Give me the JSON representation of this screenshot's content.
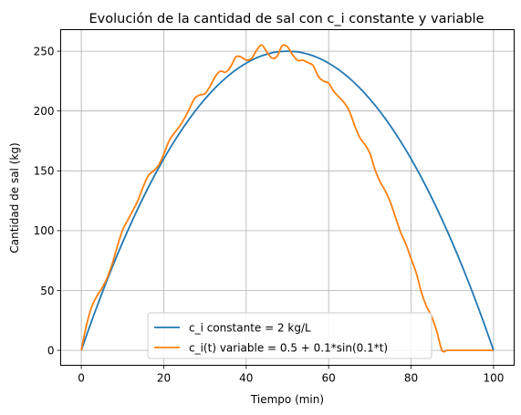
{
  "chart_data": {
    "type": "line",
    "title": "Evolución de la cantidad de sal con c_i constante y variable",
    "xlabel": "Tiempo (min)",
    "ylabel": "Cantidad de sal (kg)",
    "xlim": [
      -5,
      105
    ],
    "ylim": [
      -12.5,
      268
    ],
    "xticks": [
      0,
      20,
      40,
      60,
      80,
      100
    ],
    "yticks": [
      0,
      50,
      100,
      150,
      200,
      250
    ],
    "grid": true,
    "legend_position": "bottom-center",
    "series": [
      {
        "name": "c_i constante = 2 kg/L",
        "color": "#1f77b4",
        "x": [
          0,
          2.5,
          5,
          7.5,
          10,
          12.5,
          15,
          17.5,
          20,
          22.5,
          25,
          27.5,
          30,
          32.5,
          35,
          37.5,
          40,
          42.5,
          45,
          47.5,
          50,
          52.5,
          55,
          57.5,
          60,
          62.5,
          65,
          67.5,
          70,
          72.5,
          75,
          77.5,
          80,
          82.5,
          85,
          87.5,
          90,
          92.5,
          95,
          97.5,
          100
        ],
        "y": [
          0,
          24.4,
          47.5,
          69.4,
          90,
          109.4,
          127.5,
          144.4,
          160,
          174.4,
          187.5,
          199.4,
          210,
          219.4,
          227.5,
          234.4,
          240,
          244.4,
          247.5,
          249.4,
          250,
          249.4,
          247.5,
          244.4,
          240,
          234.4,
          227.5,
          219.4,
          210,
          199.4,
          187.5,
          174.4,
          160,
          144.4,
          127.5,
          109.4,
          90,
          69.4,
          47.5,
          24.4,
          0
        ]
      },
      {
        "name": "c_i(t) variable = 0.5 + 0.1*sin(0.1*t)",
        "color": "#ff7f0e",
        "x": [
          0,
          1.25,
          2.5,
          3.75,
          5,
          6.25,
          7.5,
          8.75,
          10,
          11.25,
          12.5,
          13.75,
          15,
          16.25,
          17.5,
          18.75,
          20,
          21.25,
          22.5,
          23.75,
          25,
          26.25,
          27.5,
          28.75,
          30,
          31.25,
          32.5,
          33.75,
          35,
          36.25,
          37.5,
          38.75,
          40,
          41.25,
          42.5,
          43.75,
          45,
          46.25,
          47.5,
          48.75,
          50,
          51.25,
          52.5,
          53.75,
          55,
          56.25,
          57.5,
          58.75,
          60,
          61.25,
          62.5,
          63.75,
          65,
          66.25,
          67.5,
          68.75,
          70,
          71.25,
          72.5,
          73.75,
          75,
          76.25,
          77.5,
          78.75,
          80,
          81.25,
          82.5,
          83.75,
          85,
          86.25,
          87.5,
          88.75,
          90,
          91.25,
          92.5,
          93.75,
          95,
          96.25,
          97.5,
          98.75,
          100
        ],
        "y": [
          0,
          20.8,
          36,
          45.1,
          51.9,
          60.3,
          72.2,
          87,
          100.3,
          108.6,
          116.8,
          125.4,
          136.5,
          146,
          150,
          154.6,
          163.8,
          174.7,
          181.3,
          186.8,
          193.7,
          202,
          210.6,
          213.4,
          214.5,
          220.8,
          228.8,
          233.3,
          232.4,
          237.1,
          245.3,
          245.1,
          242.6,
          243.7,
          250.6,
          255.2,
          249.4,
          244.2,
          245.8,
          254.6,
          253.7,
          247.1,
          242.2,
          242.5,
          240.4,
          237.9,
          228.8,
          225,
          223.3,
          216.3,
          211.7,
          207,
          200.1,
          188.4,
          178.2,
          172.2,
          164.8,
          151,
          140.7,
          133.3,
          123.5,
          110.9,
          98.3,
          88.7,
          76.5,
          64.7,
          48.6,
          36.6,
          28.3,
          15.6,
          0,
          0,
          0,
          0,
          0,
          0,
          0,
          0,
          0,
          0,
          0
        ]
      }
    ]
  }
}
